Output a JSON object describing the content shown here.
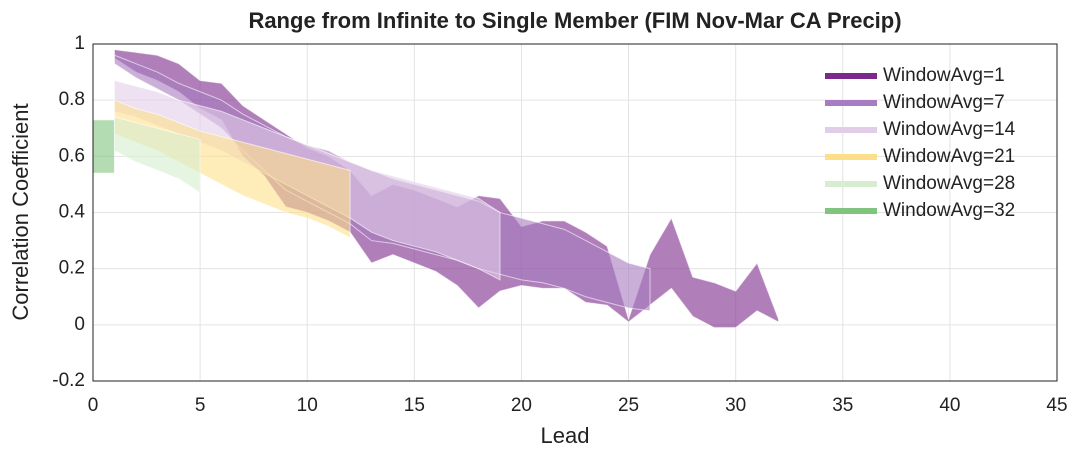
{
  "chart_data": {
    "type": "range",
    "title": "Range from Infinite to Single Member (FIM Nov-Mar CA Precip)",
    "xlabel": "Lead",
    "ylabel": "Correlation Coefficient",
    "xlim": [
      0,
      45
    ],
    "xticks": [
      0,
      5,
      10,
      15,
      20,
      25,
      30,
      35,
      40,
      45
    ],
    "ylim": [
      -0.2,
      1
    ],
    "yticks": [
      -0.2,
      0,
      0.2,
      0.4,
      0.6,
      0.8,
      1
    ],
    "grid": true,
    "legend": "upper right",
    "series": [
      {
        "name": "WindowAvg=1",
        "color": "#7b2a8c",
        "x": [
          1,
          2,
          3,
          4,
          5,
          6,
          7,
          8,
          9,
          10,
          11,
          12,
          13,
          14,
          15,
          16,
          17,
          18,
          19,
          20,
          21,
          22,
          23,
          24,
          25,
          26,
          27,
          28,
          29,
          30,
          31,
          32
        ],
        "upper": [
          0.98,
          0.97,
          0.96,
          0.93,
          0.87,
          0.86,
          0.78,
          0.73,
          0.68,
          0.63,
          0.6,
          0.55,
          0.46,
          0.5,
          0.48,
          0.45,
          0.42,
          0.46,
          0.45,
          0.35,
          0.37,
          0.37,
          0.33,
          0.28,
          0.02,
          0.25,
          0.38,
          0.17,
          0.15,
          0.12,
          0.22,
          0.02
        ],
        "lower": [
          0.95,
          0.9,
          0.87,
          0.83,
          0.77,
          0.73,
          0.6,
          0.53,
          0.42,
          0.4,
          0.37,
          0.33,
          0.22,
          0.25,
          0.22,
          0.19,
          0.14,
          0.06,
          0.12,
          0.14,
          0.13,
          0.13,
          0.08,
          0.07,
          0.01,
          0.07,
          0.13,
          0.03,
          -0.01,
          -0.01,
          0.05,
          0.01
        ]
      },
      {
        "name": "WindowAvg=7",
        "color": "#a77cc0",
        "x": [
          1,
          2,
          3,
          4,
          5,
          6,
          7,
          8,
          9,
          10,
          11,
          12,
          13,
          14,
          15,
          16,
          17,
          18,
          19,
          20,
          21,
          22,
          23,
          24,
          25,
          26
        ],
        "upper": [
          0.96,
          0.93,
          0.9,
          0.86,
          0.83,
          0.8,
          0.75,
          0.71,
          0.67,
          0.64,
          0.62,
          0.58,
          0.55,
          0.52,
          0.5,
          0.48,
          0.46,
          0.44,
          0.4,
          0.38,
          0.36,
          0.34,
          0.3,
          0.26,
          0.22,
          0.2
        ],
        "lower": [
          0.93,
          0.88,
          0.84,
          0.8,
          0.75,
          0.7,
          0.62,
          0.55,
          0.48,
          0.44,
          0.4,
          0.36,
          0.3,
          0.29,
          0.27,
          0.25,
          0.23,
          0.2,
          0.18,
          0.16,
          0.15,
          0.13,
          0.1,
          0.08,
          0.06,
          0.05
        ]
      },
      {
        "name": "WindowAvg=14",
        "color": "#e2cde8",
        "x": [
          1,
          2,
          3,
          4,
          5,
          6,
          7,
          8,
          9,
          10,
          11,
          12,
          13,
          14,
          15,
          16,
          17,
          18,
          19
        ],
        "upper": [
          0.87,
          0.85,
          0.83,
          0.8,
          0.78,
          0.76,
          0.73,
          0.7,
          0.67,
          0.64,
          0.61,
          0.58,
          0.55,
          0.53,
          0.51,
          0.49,
          0.47,
          0.45,
          0.4
        ],
        "lower": [
          0.76,
          0.74,
          0.71,
          0.68,
          0.65,
          0.62,
          0.58,
          0.54,
          0.5,
          0.46,
          0.42,
          0.38,
          0.33,
          0.3,
          0.28,
          0.26,
          0.23,
          0.2,
          0.16
        ]
      },
      {
        "name": "WindowAvg=21",
        "color": "#fddf8a",
        "x": [
          1,
          2,
          3,
          4,
          5,
          6,
          7,
          8,
          9,
          10,
          11,
          12
        ],
        "upper": [
          0.8,
          0.77,
          0.75,
          0.72,
          0.69,
          0.67,
          0.65,
          0.63,
          0.61,
          0.59,
          0.57,
          0.55
        ],
        "lower": [
          0.68,
          0.65,
          0.62,
          0.58,
          0.54,
          0.5,
          0.46,
          0.43,
          0.4,
          0.38,
          0.35,
          0.31
        ]
      },
      {
        "name": "WindowAvg=28",
        "color": "#d6eecf",
        "x": [
          1,
          2,
          3,
          4,
          5
        ],
        "upper": [
          0.74,
          0.72,
          0.7,
          0.68,
          0.66
        ],
        "lower": [
          0.62,
          0.58,
          0.55,
          0.52,
          0.47
        ]
      },
      {
        "name": "WindowAvg=32",
        "color": "#80c47f",
        "x": [
          0,
          1
        ],
        "upper": [
          0.73,
          0.73
        ],
        "lower": [
          0.54,
          0.54
        ]
      }
    ]
  }
}
